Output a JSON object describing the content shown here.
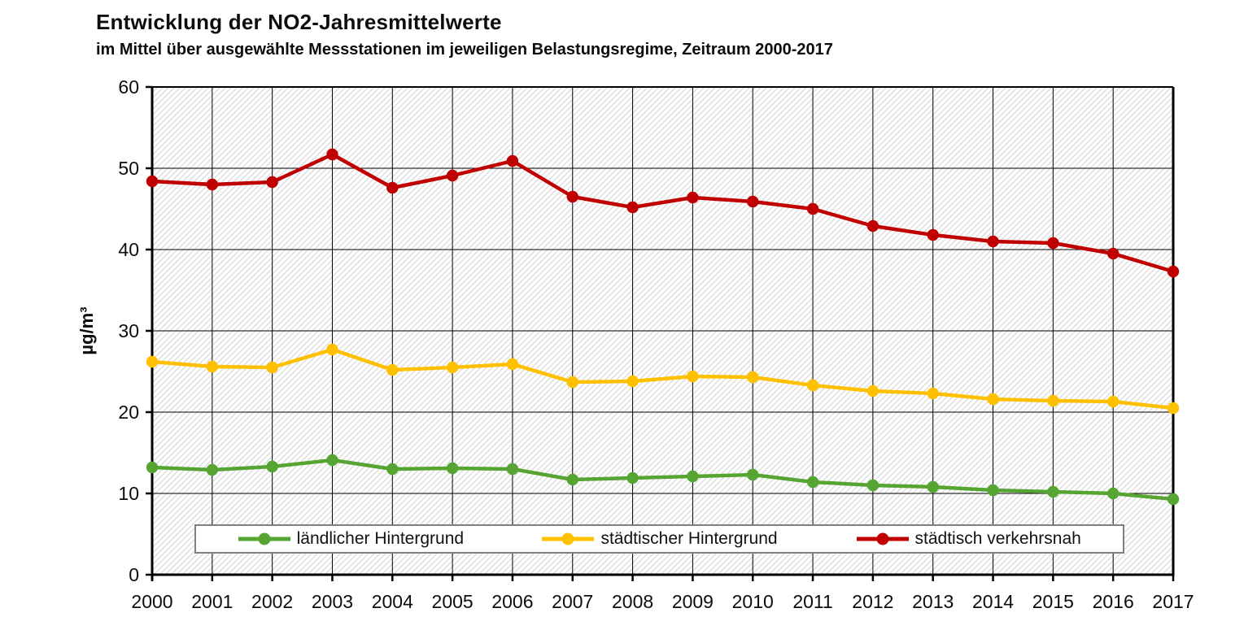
{
  "header": {
    "title": "Entwicklung der NO2-Jahresmittelwerte",
    "subtitle": "im Mittel über ausgewählte Messstationen im jeweiligen Belastungsregime, Zeitraum 2000-2017"
  },
  "chart_data": {
    "type": "line",
    "title": "Entwicklung der NO2-Jahresmittelwerte",
    "subtitle": "im Mittel über ausgewählte Messstationen im jeweiligen Belastungsregime, Zeitraum 2000-2017",
    "xlabel": "",
    "ylabel": "µg/m³",
    "ylim": [
      0,
      60
    ],
    "yticks": [
      0,
      10,
      20,
      30,
      40,
      50,
      60
    ],
    "categories": [
      "2000",
      "2001",
      "2002",
      "2003",
      "2004",
      "2005",
      "2006",
      "2007",
      "2008",
      "2009",
      "2010",
      "2011",
      "2012",
      "2013",
      "2014",
      "2015",
      "2016",
      "2017"
    ],
    "grid": "horizontal and vertical black gridlines over light diagonal hatch fill",
    "legend_position": "bottom inside plot area, horizontal, boxed",
    "series": [
      {
        "name": "ländlicher Hintergrund",
        "color": "#56A532",
        "values": [
          13.2,
          12.9,
          13.3,
          14.1,
          13.0,
          13.1,
          13.0,
          11.7,
          11.9,
          12.1,
          12.3,
          11.4,
          11.0,
          10.8,
          10.4,
          10.2,
          10.0,
          9.3
        ]
      },
      {
        "name": "städtischer Hintergrund",
        "color": "#FFC000",
        "values": [
          26.2,
          25.6,
          25.5,
          27.7,
          25.2,
          25.5,
          25.9,
          23.7,
          23.8,
          24.4,
          24.3,
          23.3,
          22.6,
          22.3,
          21.6,
          21.4,
          21.3,
          20.5
        ]
      },
      {
        "name": "städtisch verkehrsnah",
        "color": "#C00000",
        "values": [
          48.4,
          48.0,
          48.3,
          51.7,
          47.6,
          49.1,
          50.9,
          46.5,
          45.2,
          46.4,
          45.9,
          45.0,
          42.9,
          41.8,
          41.0,
          40.8,
          39.5,
          37.3
        ]
      }
    ],
    "style": {
      "hatch_color": "#d9d9d9",
      "grid_color": "#000000",
      "axis_color": "#000000",
      "legend_border_color": "#7f7f7f",
      "tick_label_color": "#0d0d0d"
    }
  }
}
